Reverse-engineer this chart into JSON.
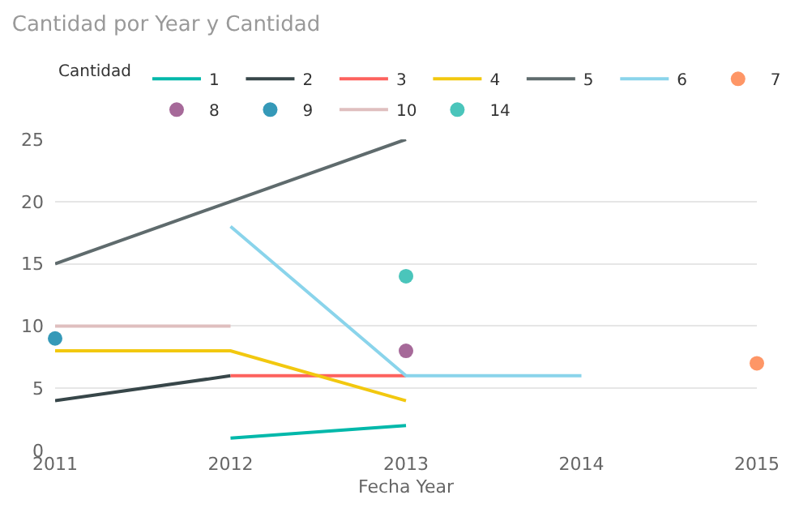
{
  "chart_data": {
    "type": "line",
    "title": "Cantidad por Year y Cantidad",
    "xlabel": "Fecha Year",
    "legend_title": "Cantidad",
    "legend": "top",
    "grid": "y",
    "marker": "none",
    "line_style": "solid",
    "xlim": [
      2011,
      2015
    ],
    "xticks": [
      2011,
      2012,
      2013,
      2014,
      2015
    ],
    "ylim": [
      0,
      25
    ],
    "yticks": [
      0,
      5,
      10,
      15,
      20,
      25
    ],
    "series": [
      {
        "name": "1",
        "color": "#01b8aa",
        "x": [
          2012,
          2013
        ],
        "values": [
          1,
          2
        ]
      },
      {
        "name": "2",
        "color": "#374649",
        "x": [
          2011,
          2012
        ],
        "values": [
          4,
          6
        ]
      },
      {
        "name": "3",
        "color": "#fd625e",
        "x": [
          2012,
          2013
        ],
        "values": [
          6,
          6
        ]
      },
      {
        "name": "4",
        "color": "#f2c80f",
        "x": [
          2011,
          2012,
          2013
        ],
        "values": [
          8,
          8,
          4
        ]
      },
      {
        "name": "5",
        "color": "#5f6b6d",
        "x": [
          2011,
          2012,
          2013
        ],
        "values": [
          15,
          20,
          25
        ]
      },
      {
        "name": "6",
        "color": "#8ad4eb",
        "x": [
          2012,
          2013,
          2014
        ],
        "values": [
          18,
          6,
          6
        ]
      },
      {
        "name": "7",
        "color": "#fe9666",
        "type": "scatter",
        "marker": "circle",
        "x": [
          2015
        ],
        "values": [
          7
        ]
      },
      {
        "name": "8",
        "color": "#a66999",
        "type": "scatter",
        "marker": "circle",
        "x": [
          2013
        ],
        "values": [
          8
        ]
      },
      {
        "name": "9",
        "color": "#3599b8",
        "type": "scatter",
        "marker": "circle",
        "x": [
          2011
        ],
        "values": [
          9
        ]
      },
      {
        "name": "10",
        "color": "#dfbfbf",
        "x": [
          2011,
          2012
        ],
        "values": [
          10,
          10
        ]
      },
      {
        "name": "14",
        "color": "#4ac5bb",
        "type": "scatter",
        "marker": "circle",
        "x": [
          2013
        ],
        "values": [
          14
        ]
      }
    ]
  }
}
